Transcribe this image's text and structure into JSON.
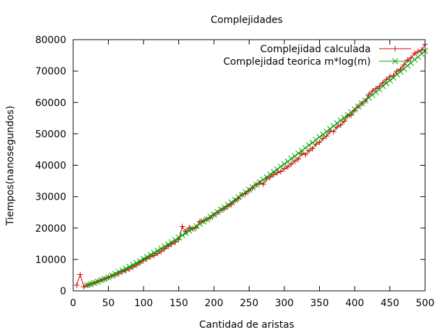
{
  "chart_data": {
    "type": "line",
    "title": "Complejidades",
    "xlabel": "Cantidad de aristas",
    "ylabel": "Tiempos(nanosegundos)",
    "xlim": [
      0,
      500
    ],
    "ylim": [
      0,
      80000
    ],
    "xticks": [
      0,
      50,
      100,
      150,
      200,
      250,
      300,
      350,
      400,
      450,
      500
    ],
    "yticks": [
      0,
      10000,
      20000,
      30000,
      40000,
      50000,
      60000,
      70000,
      80000
    ],
    "grid": false,
    "legend_position": "top-right",
    "series": [
      {
        "name": "Complejidad calculada",
        "color": "#cc0000",
        "marker": "plus",
        "x": [
          5,
          10,
          15,
          20,
          25,
          30,
          35,
          40,
          45,
          50,
          55,
          60,
          65,
          70,
          75,
          80,
          85,
          90,
          95,
          100,
          105,
          110,
          115,
          120,
          125,
          130,
          135,
          140,
          145,
          150,
          155,
          160,
          165,
          170,
          175,
          180,
          185,
          190,
          195,
          200,
          205,
          210,
          215,
          220,
          225,
          230,
          235,
          240,
          245,
          250,
          255,
          260,
          265,
          270,
          275,
          280,
          285,
          290,
          295,
          300,
          305,
          310,
          315,
          320,
          325,
          330,
          335,
          340,
          345,
          350,
          355,
          360,
          365,
          370,
          375,
          380,
          385,
          390,
          395,
          400,
          405,
          410,
          415,
          420,
          425,
          430,
          435,
          440,
          445,
          450,
          455,
          460,
          465,
          470,
          475,
          480,
          485,
          490,
          495,
          500
        ],
        "y": [
          1800,
          5200,
          1300,
          1800,
          2200,
          2600,
          3000,
          3400,
          3800,
          4300,
          4700,
          5100,
          5600,
          6100,
          6500,
          7000,
          7600,
          8200,
          8900,
          9700,
          10300,
          10900,
          11300,
          11900,
          12600,
          13400,
          14200,
          14900,
          15500,
          16400,
          20500,
          18900,
          20100,
          19800,
          20200,
          22100,
          22300,
          22800,
          23300,
          24200,
          24900,
          25700,
          26200,
          27000,
          27600,
          28700,
          29400,
          30600,
          31000,
          31900,
          32800,
          33800,
          34300,
          34000,
          35700,
          36300,
          37000,
          37600,
          38000,
          38900,
          39500,
          40400,
          41300,
          42000,
          43700,
          43400,
          44600,
          45300,
          46700,
          47300,
          48500,
          49300,
          50800,
          50700,
          52200,
          52800,
          54000,
          55700,
          56000,
          57500,
          58700,
          59600,
          60500,
          62500,
          63600,
          64400,
          65100,
          66300,
          67300,
          68200,
          68500,
          70000,
          70600,
          72000,
          73500,
          74200,
          75600,
          76200,
          76700,
          78500
        ]
      },
      {
        "name": "Complejidad teorica m*log(m)",
        "color": "#00a000",
        "marker": "x",
        "x": [
          20,
          25,
          30,
          35,
          40,
          45,
          50,
          55,
          60,
          65,
          70,
          75,
          80,
          85,
          90,
          95,
          100,
          105,
          110,
          115,
          120,
          125,
          130,
          135,
          140,
          145,
          150,
          155,
          160,
          165,
          170,
          175,
          180,
          185,
          190,
          195,
          200,
          205,
          210,
          215,
          220,
          225,
          230,
          235,
          240,
          245,
          250,
          255,
          260,
          265,
          270,
          275,
          280,
          285,
          290,
          295,
          300,
          305,
          310,
          315,
          320,
          325,
          330,
          335,
          340,
          345,
          350,
          355,
          360,
          365,
          370,
          375,
          380,
          385,
          390,
          395,
          400,
          405,
          410,
          415,
          420,
          425,
          430,
          435,
          440,
          445,
          450,
          455,
          460,
          465,
          470,
          475,
          480,
          485,
          490,
          495,
          500
        ],
        "y": [
          1800,
          2100,
          2500,
          2900,
          3400,
          3800,
          4300,
          4900,
          5400,
          6000,
          6500,
          7100,
          7700,
          8300,
          8900,
          9500,
          10200,
          10800,
          11500,
          12100,
          12800,
          13500,
          14200,
          14800,
          15500,
          16200,
          17000,
          17700,
          18400,
          19100,
          19800,
          20600,
          21300,
          22100,
          22800,
          23600,
          24300,
          25100,
          25900,
          26600,
          27400,
          28200,
          29000,
          29800,
          30600,
          31400,
          32200,
          33000,
          33800,
          34600,
          35400,
          36200,
          37100,
          37900,
          38700,
          39600,
          40400,
          41200,
          42100,
          42900,
          43800,
          44600,
          45500,
          46400,
          47200,
          48100,
          49000,
          49800,
          50700,
          51600,
          52500,
          53400,
          54300,
          55100,
          56000,
          56900,
          57800,
          58700,
          59700,
          60600,
          61500,
          62400,
          63300,
          64200,
          65200,
          66100,
          67000,
          67900,
          68900,
          69800,
          70700,
          71700,
          72600,
          73600,
          74500,
          75500,
          76400
        ]
      }
    ]
  }
}
